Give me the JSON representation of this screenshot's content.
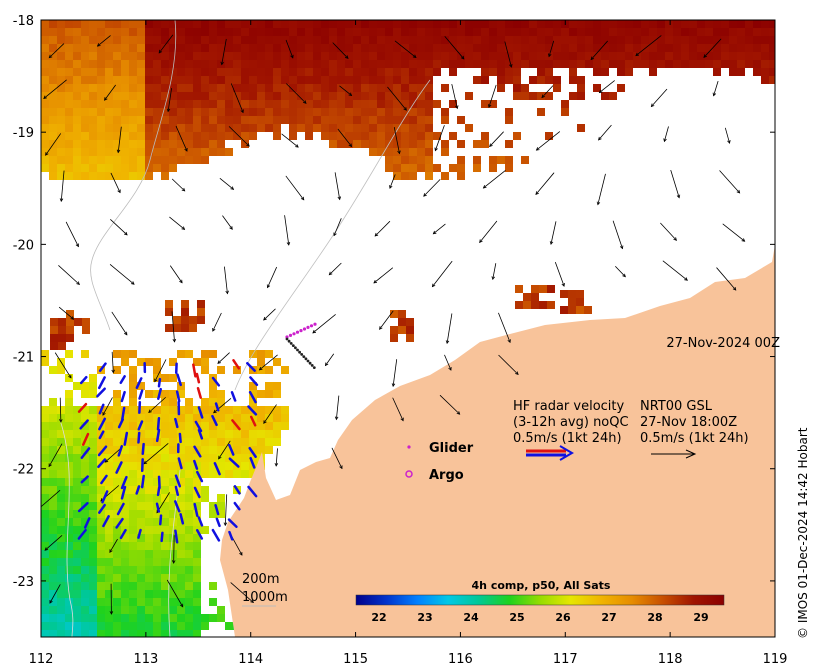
{
  "map": {
    "lon_ticks": [
      "112",
      "113",
      "114",
      "115",
      "116",
      "117",
      "118",
      "119"
    ],
    "lat_ticks": [
      "-18",
      "-19",
      "-20",
      "-21",
      "-22",
      "-23"
    ],
    "lon_range": [
      112,
      119
    ],
    "lat_range": [
      -23.5,
      -18
    ],
    "timestamp": "27-Nov-2024 00Z",
    "land_color": "#f8c39a",
    "no_data_color": "#ffffff"
  },
  "hf_radar": {
    "title": "HF radar velocity",
    "avg": "(3-12h avg) noQC",
    "scale": "0.5m/s (1kt 24h)",
    "nrt_title": "NRT00 GSL",
    "nrt_time": "27-Nov 18:00Z",
    "nrt_scale": "0.5m/s (1kt 24h)",
    "arrow_colors": {
      "radar_primary": "#1010e0",
      "radar_secondary": "#e01010",
      "nrt": "#000000"
    }
  },
  "legend": {
    "glider": "Glider",
    "argo": "Argo",
    "glider_color": "#cc22cc",
    "argo_color": "#cc22cc"
  },
  "bathymetry": {
    "label_200": "200m",
    "label_1000": "1000m"
  },
  "colorbar": {
    "title": "4h comp, p50, All Sats",
    "ticks": [
      "22",
      "23",
      "24",
      "25",
      "26",
      "27",
      "28",
      "29"
    ],
    "range": [
      21.5,
      29.5
    ],
    "colors": [
      "#00008b",
      "#0033cc",
      "#0080ff",
      "#00c8e6",
      "#00c896",
      "#1ed21e",
      "#96dc00",
      "#e6e600",
      "#f0b400",
      "#e68c00",
      "#c85000",
      "#a01400",
      "#8b0000"
    ]
  },
  "credit": "© IMOS 01-Dec-2024 14:42 Hobart"
}
